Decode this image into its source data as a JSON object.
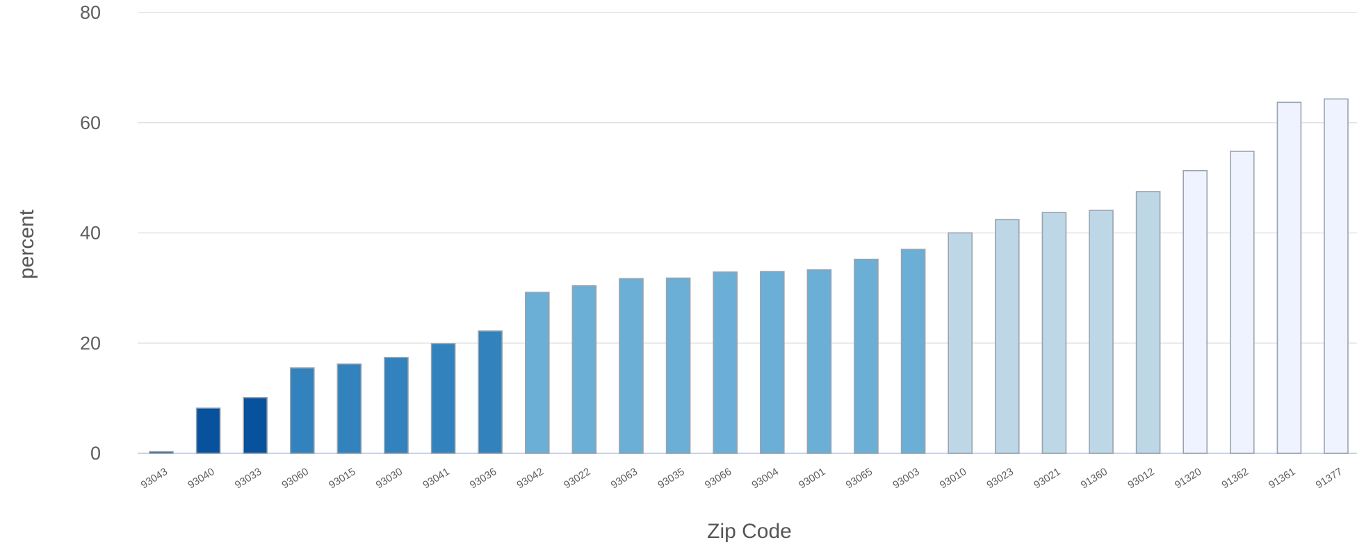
{
  "chart_data": {
    "type": "bar",
    "title": "",
    "xlabel": "Zip Code",
    "ylabel": "percent",
    "ylim": [
      0,
      80
    ],
    "yticks": [
      0,
      20,
      40,
      60,
      80
    ],
    "grid": true,
    "legend": "none",
    "categories": [
      "93043",
      "93040",
      "93033",
      "93060",
      "93015",
      "93030",
      "93041",
      "93036",
      "93042",
      "93022",
      "93063",
      "93035",
      "93066",
      "93004",
      "93001",
      "93065",
      "93003",
      "93010",
      "93023",
      "93021",
      "91360",
      "93012",
      "91320",
      "91362",
      "91361",
      "91377"
    ],
    "values": [
      0.3,
      8.2,
      10.1,
      15.5,
      16.2,
      17.4,
      19.9,
      22.2,
      29.2,
      30.4,
      31.7,
      31.8,
      32.9,
      33.0,
      33.3,
      35.2,
      37.0,
      40.0,
      42.4,
      43.7,
      44.1,
      47.5,
      51.3,
      54.8,
      63.7,
      64.3
    ],
    "colors": [
      "#08519c",
      "#08519c",
      "#08519c",
      "#3182bd",
      "#3182bd",
      "#3182bd",
      "#3182bd",
      "#3182bd",
      "#6baed6",
      "#6baed6",
      "#6baed6",
      "#6baed6",
      "#6baed6",
      "#6baed6",
      "#6baed6",
      "#6baed6",
      "#6baed6",
      "#bdd7e7",
      "#bdd7e7",
      "#bdd7e7",
      "#bdd7e7",
      "#bdd7e7",
      "#eff3ff",
      "#eff3ff",
      "#eff3ff",
      "#eff3ff"
    ]
  }
}
